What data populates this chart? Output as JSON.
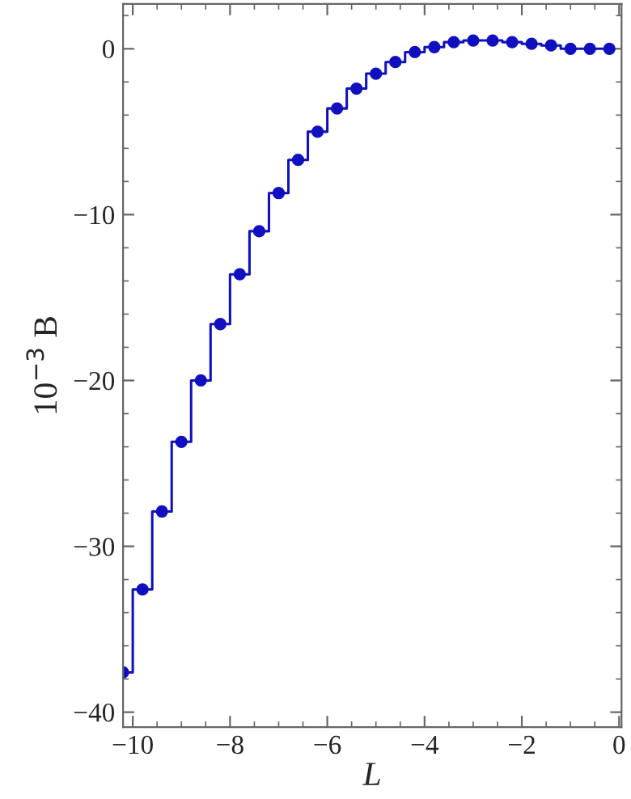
{
  "chart_data": {
    "type": "step",
    "xlabel": "L",
    "ylabel": "10$^{−3}$ B",
    "x": [
      -10.2,
      -9.8,
      -9.4,
      -9.0,
      -8.6,
      -8.2,
      -7.8,
      -7.4,
      -7.0,
      -6.6,
      -6.2,
      -5.8,
      -5.4,
      -5.0,
      -4.6,
      -4.2,
      -3.8,
      -3.4,
      -3.0,
      -2.6,
      -2.2,
      -1.8,
      -1.4,
      -1.0,
      -0.6,
      -0.2
    ],
    "series": [
      {
        "color": "#1010c0",
        "values": [
          -37.6,
          -32.6,
          -27.9,
          -23.7,
          -20.0,
          -16.6,
          -13.6,
          -11.0,
          -8.7,
          -6.7,
          -5.0,
          -3.6,
          -2.4,
          -1.5,
          -0.8,
          -0.2,
          0.1,
          0.4,
          0.5,
          0.5,
          0.4,
          0.3,
          0.2,
          0,
          0,
          0
        ]
      }
    ],
    "xlim": [
      -10.2,
      0.05
    ],
    "ylim": [
      -40.9,
      2.7
    ],
    "xticks": [
      {
        "value": -10,
        "label": "−10"
      },
      {
        "value": -8,
        "label": "−8"
      },
      {
        "value": -6,
        "label": "−6"
      },
      {
        "value": -4,
        "label": "−4"
      },
      {
        "value": -2,
        "label": "−2"
      },
      0
    ],
    "yticks": [
      {
        "value": -40,
        "label": "−40"
      },
      {
        "value": -30,
        "label": "−30"
      },
      {
        "value": -20,
        "label": "−20"
      },
      {
        "value": -10,
        "label": "−10"
      },
      0
    ],
    "marker": "circle",
    "line_style": "solid",
    "grid": false,
    "legend": false
  }
}
